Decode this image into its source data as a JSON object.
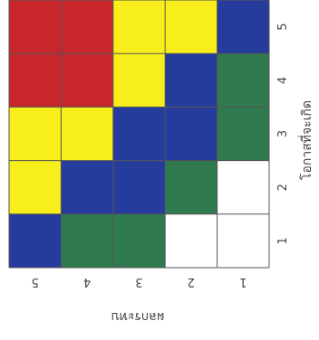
{
  "chart_data": {
    "type": "heatmap",
    "x_axis": {
      "title": "โอกาสที่จะเกิด",
      "ticks": [
        "1",
        "2",
        "3",
        "4",
        "5"
      ]
    },
    "y_axis": {
      "title": "ผลกระทบ",
      "ticks": [
        "5",
        "4",
        "3",
        "2",
        "1"
      ]
    },
    "legend": [
      {
        "level": "white",
        "color": "#ffffff"
      },
      {
        "level": "green",
        "color": "#2f7a4e"
      },
      {
        "level": "blue",
        "color": "#263c9c"
      },
      {
        "level": "yellow",
        "color": "#f7ee1c"
      },
      {
        "level": "red",
        "color": "#c7262d"
      }
    ],
    "cells": [
      {
        "impact": 5,
        "likelihood": 1,
        "color": "blue"
      },
      {
        "impact": 5,
        "likelihood": 2,
        "color": "yellow"
      },
      {
        "impact": 5,
        "likelihood": 3,
        "color": "yellow"
      },
      {
        "impact": 5,
        "likelihood": 4,
        "color": "red"
      },
      {
        "impact": 5,
        "likelihood": 5,
        "color": "red"
      },
      {
        "impact": 4,
        "likelihood": 1,
        "color": "green"
      },
      {
        "impact": 4,
        "likelihood": 2,
        "color": "blue"
      },
      {
        "impact": 4,
        "likelihood": 3,
        "color": "yellow"
      },
      {
        "impact": 4,
        "likelihood": 4,
        "color": "red"
      },
      {
        "impact": 4,
        "likelihood": 5,
        "color": "red"
      },
      {
        "impact": 3,
        "likelihood": 1,
        "color": "green"
      },
      {
        "impact": 3,
        "likelihood": 2,
        "color": "blue"
      },
      {
        "impact": 3,
        "likelihood": 3,
        "color": "blue"
      },
      {
        "impact": 3,
        "likelihood": 4,
        "color": "yellow"
      },
      {
        "impact": 3,
        "likelihood": 5,
        "color": "yellow"
      },
      {
        "impact": 2,
        "likelihood": 1,
        "color": "white"
      },
      {
        "impact": 2,
        "likelihood": 2,
        "color": "green"
      },
      {
        "impact": 2,
        "likelihood": 3,
        "color": "blue"
      },
      {
        "impact": 2,
        "likelihood": 4,
        "color": "blue"
      },
      {
        "impact": 2,
        "likelihood": 5,
        "color": "yellow"
      },
      {
        "impact": 1,
        "likelihood": 1,
        "color": "white"
      },
      {
        "impact": 1,
        "likelihood": 2,
        "color": "white"
      },
      {
        "impact": 1,
        "likelihood": 3,
        "color": "green"
      },
      {
        "impact": 1,
        "likelihood": 4,
        "color": "green"
      },
      {
        "impact": 1,
        "likelihood": 5,
        "color": "blue"
      }
    ]
  }
}
